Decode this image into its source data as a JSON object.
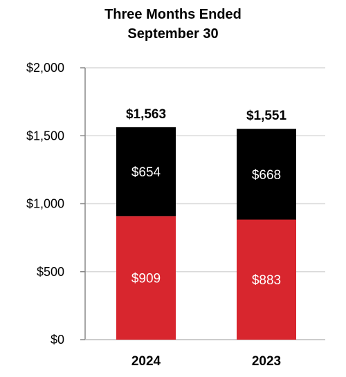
{
  "chart_data": {
    "type": "bar",
    "stacked": true,
    "title_lines": [
      "Three Months Ended",
      "September 30"
    ],
    "categories": [
      "2024",
      "2023"
    ],
    "series": [
      {
        "values": [
          909,
          883
        ],
        "labels": [
          "$909",
          "$883"
        ],
        "color": "#d8262e",
        "label_color": "#ffffff"
      },
      {
        "values": [
          654,
          668
        ],
        "labels": [
          "$654",
          "$668"
        ],
        "color": "#000000",
        "label_color": "#ffffff"
      }
    ],
    "totals": [
      1563,
      1551
    ],
    "total_labels": [
      "$1,563",
      "$1,551"
    ],
    "ylim": [
      0,
      2000
    ],
    "yticks": [
      0,
      500,
      1000,
      1500,
      2000
    ],
    "ytick_labels": [
      "$0",
      "$500",
      "$1,000",
      "$1,500",
      "$2,000"
    ],
    "grid": true,
    "legend": "none"
  }
}
